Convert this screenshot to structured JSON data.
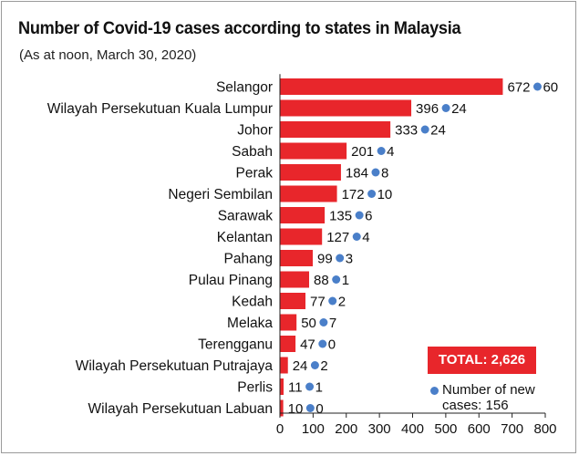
{
  "title": "Number of Covid-19 cases according to states in Malaysia",
  "subtitle": "(As at noon, March 30, 2020)",
  "total_label": "TOTAL: 2,626",
  "legend_label": "Number of new cases: 156",
  "colors": {
    "bar": "#e8262b",
    "dot": "#4a7fc9",
    "axis": "#222222"
  },
  "chart_data": {
    "type": "bar",
    "orientation": "horizontal",
    "title": "Number of Covid-19 cases according to states in Malaysia",
    "subtitle": "(As at noon, March 30, 2020)",
    "categories": [
      "Selangor",
      "Wilayah Persekutuan Kuala Lumpur",
      "Johor",
      "Sabah",
      "Perak",
      "Negeri Sembilan",
      "Sarawak",
      "Kelantan",
      "Pahang",
      "Pulau Pinang",
      "Kedah",
      "Melaka",
      "Terengganu",
      "Wilayah Persekutuan Putrajaya",
      "Perlis",
      "Wilayah Persekutuan Labuan"
    ],
    "series": [
      {
        "values": [
          672,
          396,
          333,
          201,
          184,
          172,
          135,
          127,
          99,
          88,
          77,
          50,
          47,
          24,
          11,
          10
        ]
      },
      {
        "name": "Number of new cases",
        "values": [
          60,
          24,
          24,
          4,
          8,
          10,
          6,
          4,
          3,
          1,
          2,
          7,
          0,
          2,
          1,
          0
        ]
      }
    ],
    "xlim": [
      0,
      800
    ],
    "xticks": [
      0,
      100,
      200,
      300,
      400,
      500,
      600,
      700,
      800
    ],
    "grid": false,
    "legend_position": "bottom-right"
  }
}
